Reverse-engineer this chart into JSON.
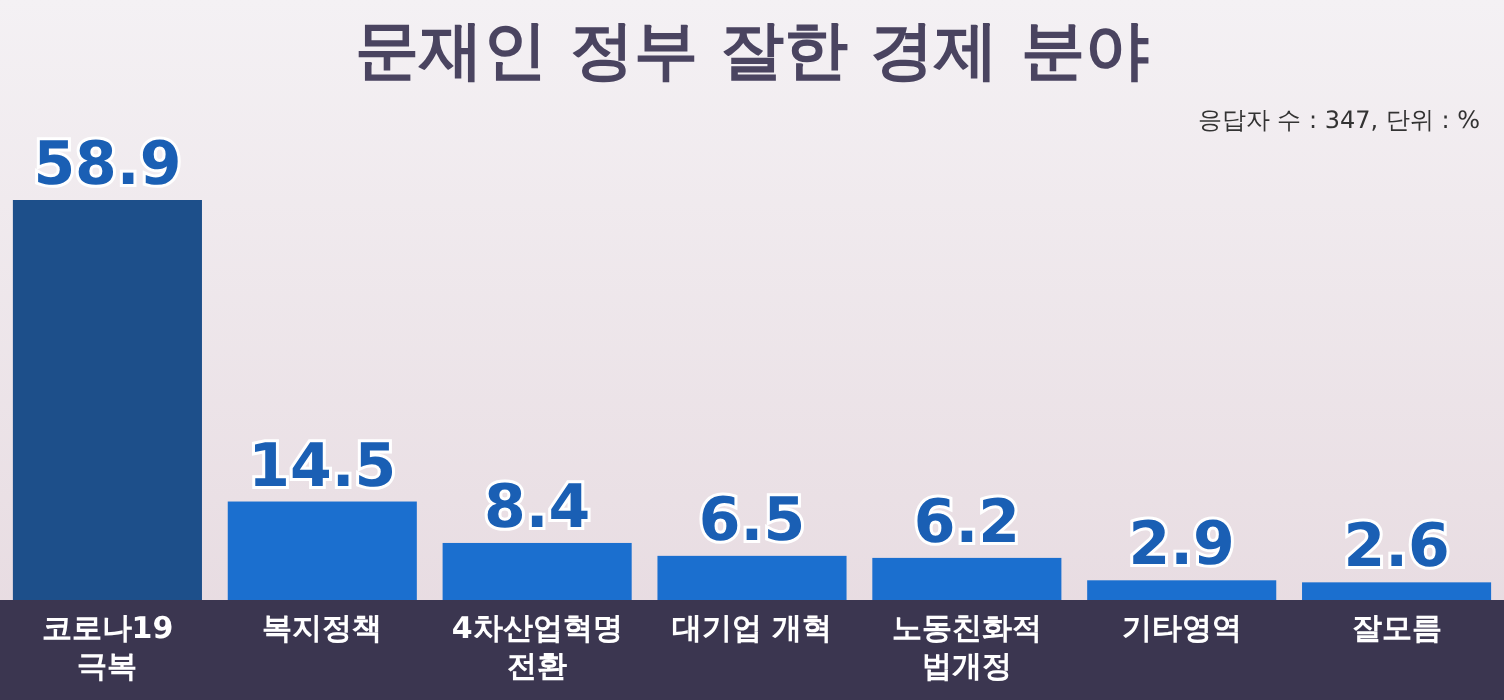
{
  "chart_data": {
    "type": "bar",
    "title": "문재인 정부 잘한 경제 분야",
    "subtitle": "응답자 수 : 347, 단위 : %",
    "categories": [
      "코로나19\n극복",
      "복지정책",
      "4차산업혁명\n전환",
      "대기업 개혁",
      "노동친화적\n법개정",
      "기타영역",
      "잘모름"
    ],
    "values": [
      58.9,
      14.5,
      8.4,
      6.5,
      6.2,
      2.9,
      2.6
    ],
    "colors": [
      "#1d4f8a",
      "#1b6fcf",
      "#1b6fcf",
      "#1b6fcf",
      "#1b6fcf",
      "#1b6fcf",
      "#1b6fcf"
    ],
    "data_labels": true
  }
}
